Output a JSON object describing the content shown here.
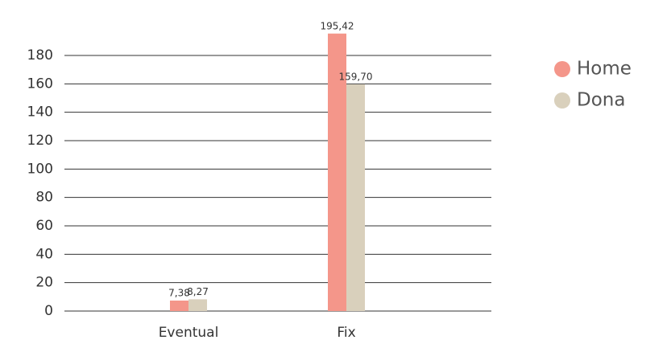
{
  "chart_data": {
    "type": "bar",
    "categories": [
      "Eventual",
      "Fix"
    ],
    "series": [
      {
        "name": "Home",
        "color": "#f4968a",
        "values": [
          7.38,
          195.42
        ],
        "value_labels": [
          "7,38",
          "195,42"
        ]
      },
      {
        "name": "Dona",
        "color": "#d9d0bc",
        "values": [
          8.27,
          159.7
        ],
        "value_labels": [
          "8,27",
          "159,70"
        ]
      }
    ],
    "ylim": [
      0,
      180
    ],
    "yticks": [
      0,
      20,
      40,
      60,
      80,
      100,
      120,
      140,
      160,
      180
    ],
    "grid": true,
    "legend": "right"
  }
}
